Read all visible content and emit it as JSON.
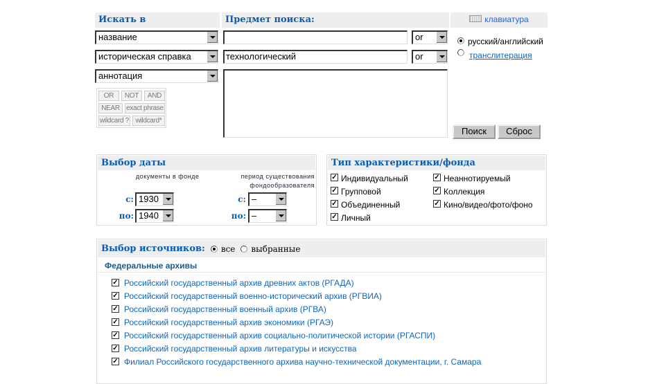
{
  "search": {
    "search_in_label": "Искать в",
    "subject_label": "Предмет поиска:",
    "keyboard_label": "клавиатура",
    "fields": [
      {
        "field": "название",
        "value": "",
        "operator": "or"
      },
      {
        "field": "историческая справка",
        "value": "технологический",
        "operator": "or"
      },
      {
        "field": "аннотация",
        "value": ""
      }
    ],
    "operators": [
      "OR",
      "NOT",
      "AND",
      "NEAR",
      "exact phrase",
      "wildcard ?",
      "wildcard*"
    ],
    "lang_options": [
      {
        "label": "русский/английский",
        "selected": true
      },
      {
        "label": "транслитерация",
        "selected": false
      }
    ],
    "search_button": "Поиск",
    "reset_button": "Сброс"
  },
  "date": {
    "title": "Выбор даты",
    "col1_label": "документы в фонде",
    "col2_label_1": "период существования",
    "col2_label_2": "фондообразователя",
    "from_label": "с:",
    "to_label": "по:",
    "docs_from": "1930",
    "docs_to": "1940",
    "period_from": "–",
    "period_to": "–"
  },
  "type": {
    "title": "Тип характеристики/фонда",
    "items": [
      {
        "label": "Индивидуальный",
        "checked": true
      },
      {
        "label": "Групповой",
        "checked": true
      },
      {
        "label": "Объединенный",
        "checked": true
      },
      {
        "label": "Личный",
        "checked": true
      },
      {
        "label": "Неаннотируемый",
        "checked": true
      },
      {
        "label": "Коллекция",
        "checked": true
      },
      {
        "label": "Кино/видео/фото/фоно",
        "checked": true
      }
    ]
  },
  "sources": {
    "title": "Выбор источников:",
    "all_label": "все",
    "selected_label": "выбранные",
    "group_title": "Федеральные архивы",
    "archives": [
      "Российский государственный архив древних актов (РГАДА)",
      "Российский государственный военно-исторический архив (РГВИА)",
      "Российский государственный военный архив (РГВА)",
      "Российский государственный архив экономики (РГАЭ)",
      "Российский государственный архив социально-политической истории (РГАСПИ)",
      "Российский государственный архив литературы и искусства",
      "Филиал Российского государственного архива научно-технической документации, г. Самара"
    ]
  },
  "colors": {
    "heading": "#0a5cb0",
    "link": "#0a66c2",
    "header_bg": "#eeeeee"
  }
}
